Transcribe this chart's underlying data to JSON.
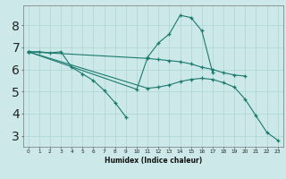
{
  "xlabel": "Humidex (Indice chaleur)",
  "bg_color": "#cce8e8",
  "grid_color": "#aad4d4",
  "line_color": "#1a7a6e",
  "xlim": [
    -0.5,
    23.5
  ],
  "ylim": [
    2.5,
    8.9
  ],
  "yticks": [
    3,
    4,
    5,
    6,
    7,
    8
  ],
  "xticks": [
    0,
    1,
    2,
    3,
    4,
    5,
    6,
    7,
    8,
    9,
    10,
    11,
    12,
    13,
    14,
    15,
    16,
    17,
    18,
    19,
    20,
    21,
    22,
    23
  ],
  "line1_x": [
    0,
    1,
    2,
    3,
    4,
    5,
    6,
    7,
    8,
    9
  ],
  "line1_y": [
    6.8,
    6.8,
    6.75,
    6.8,
    6.1,
    5.8,
    5.5,
    5.05,
    4.5,
    3.85
  ],
  "line2_x": [
    0,
    11,
    12,
    13,
    14,
    15,
    16,
    17,
    18,
    19,
    20
  ],
  "line2_y": [
    6.8,
    6.5,
    6.45,
    6.4,
    6.35,
    6.25,
    6.1,
    6.0,
    5.85,
    5.75,
    5.7
  ],
  "line3_x": [
    0,
    11,
    12,
    13,
    14,
    15,
    16,
    17,
    18,
    19,
    20,
    21,
    22,
    23
  ],
  "line3_y": [
    6.8,
    5.15,
    5.2,
    5.3,
    5.45,
    5.55,
    5.6,
    5.55,
    5.4,
    5.2,
    4.65,
    3.9,
    3.15,
    2.8
  ],
  "line4_x": [
    0,
    10,
    11,
    12,
    13,
    14,
    15,
    16,
    17
  ],
  "line4_y": [
    6.8,
    5.1,
    6.55,
    7.2,
    7.6,
    8.45,
    8.35,
    7.75,
    5.85
  ]
}
